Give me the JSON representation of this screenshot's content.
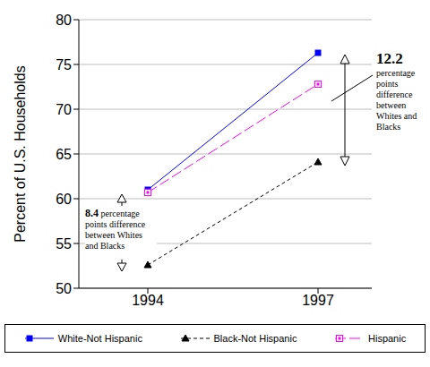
{
  "chart_data": {
    "type": "line",
    "categories": [
      "1994",
      "1997"
    ],
    "y_label": "Percent of U.S. Households",
    "ylim": [
      50,
      80
    ],
    "yticks": [
      50,
      55,
      60,
      65,
      70,
      75,
      80
    ],
    "grid": true,
    "legend": "bottom",
    "series": [
      {
        "name": "White-Not Hispanic",
        "color": "#0000ff",
        "marker": "square",
        "line_style": "solid",
        "values": [
          61.0,
          76.3
        ]
      },
      {
        "name": "Black-Not Hispanic",
        "color": "#000000",
        "marker": "triangle",
        "line_style": "dashed",
        "values": [
          52.6,
          64.1
        ]
      },
      {
        "name": "Hispanic",
        "color": "#ff00ff",
        "marker": "square_open",
        "line_style": "long_dash",
        "values": [
          60.7,
          72.8
        ]
      }
    ],
    "annotations": [
      {
        "text": "12.2",
        "detail": "percentage points difference between Whites and Blacks"
      },
      {
        "text": "8.4",
        "detail": "percentage points difference between Whites and Blacks"
      }
    ]
  }
}
